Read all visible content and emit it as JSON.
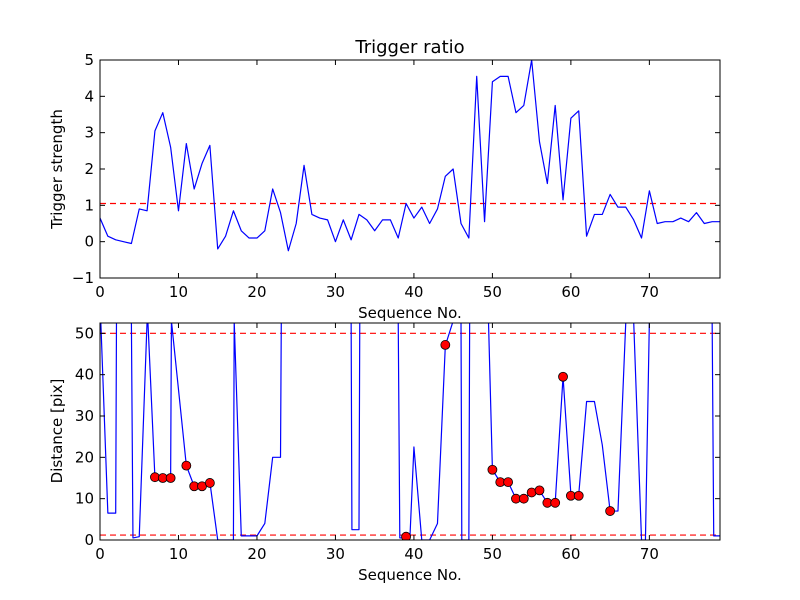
{
  "chart_data": [
    {
      "type": "line",
      "title": "Trigger ratio",
      "xlabel": "Sequence No.",
      "ylabel": "Trigger strength",
      "xlim": [
        0,
        79
      ],
      "ylim": [
        -1,
        5
      ],
      "xticks": [
        0,
        10,
        20,
        30,
        40,
        50,
        60,
        70
      ],
      "yticks": [
        -1,
        0,
        1,
        2,
        3,
        4,
        5
      ],
      "xtick_labels": [
        "0",
        "10",
        "20",
        "30",
        "40",
        "50",
        "60",
        "70"
      ],
      "ytick_labels": [
        "−1",
        "0",
        "1",
        "2",
        "3",
        "4",
        "5"
      ],
      "line_color": "#0000ff",
      "threshold_color": "#ff0000",
      "thresholds": [
        1.05
      ],
      "x": [
        0,
        1,
        2,
        3,
        4,
        5,
        6,
        7,
        8,
        9,
        10,
        11,
        12,
        13,
        14,
        15,
        16,
        17,
        18,
        19,
        20,
        21,
        22,
        23,
        24,
        25,
        26,
        27,
        28,
        29,
        30,
        31,
        32,
        33,
        34,
        35,
        36,
        37,
        38,
        39,
        40,
        41,
        42,
        43,
        44,
        45,
        46,
        47,
        48,
        49,
        50,
        51,
        52,
        53,
        54,
        55,
        56,
        57,
        58,
        59,
        60,
        61,
        62,
        63,
        64,
        65,
        66,
        67,
        68,
        69,
        70,
        71,
        72,
        73,
        74,
        75,
        76,
        77,
        78,
        79
      ],
      "y": [
        0.65,
        0.15,
        0.05,
        0.0,
        -0.05,
        0.9,
        0.85,
        3.05,
        3.55,
        2.6,
        0.85,
        2.7,
        1.45,
        2.15,
        2.65,
        -0.2,
        0.15,
        0.85,
        0.3,
        0.1,
        0.1,
        0.3,
        1.45,
        0.8,
        -0.25,
        0.5,
        2.1,
        0.75,
        0.65,
        0.6,
        0.0,
        0.6,
        0.05,
        0.75,
        0.6,
        0.3,
        0.6,
        0.6,
        0.1,
        1.05,
        0.65,
        0.95,
        0.5,
        0.9,
        1.8,
        2.0,
        0.5,
        0.1,
        4.55,
        0.55,
        4.4,
        4.55,
        4.55,
        3.55,
        3.75,
        5.0,
        2.75,
        1.6,
        3.75,
        1.15,
        3.4,
        3.6,
        0.15,
        0.75,
        0.75,
        1.3,
        0.95,
        0.95,
        0.6,
        0.1,
        1.4,
        0.5,
        0.55,
        0.55,
        0.65,
        0.55,
        0.8,
        0.5,
        0.55,
        0.55
      ]
    },
    {
      "type": "line",
      "title": "",
      "xlabel": "Sequence No.",
      "ylabel": "Distance [pix]",
      "xlim": [
        0,
        79
      ],
      "ylim": [
        0,
        52.5
      ],
      "xticks": [
        0,
        10,
        20,
        30,
        40,
        50,
        60,
        70
      ],
      "yticks": [
        0,
        10,
        20,
        30,
        40,
        50
      ],
      "xtick_labels": [
        "0",
        "10",
        "20",
        "30",
        "40",
        "50",
        "60",
        "70"
      ],
      "ytick_labels": [
        "0",
        "10",
        "20",
        "30",
        "40",
        "50"
      ],
      "line_color": "#0000ff",
      "marker_color": "#ff0000",
      "threshold_color": "#ff0000",
      "thresholds": [
        50,
        1.2
      ],
      "x": [
        0,
        0.1,
        1,
        2,
        2.1,
        4,
        4.2,
        5,
        6,
        6.1,
        7,
        8,
        9,
        9.1,
        11,
        12,
        13,
        14,
        15,
        16,
        17,
        17.1,
        18,
        19,
        20,
        21,
        22,
        23,
        23.1,
        32,
        32.1,
        33,
        33.1,
        38,
        38.2,
        39,
        39.5,
        40,
        41,
        42,
        43,
        44,
        45,
        46,
        46.1,
        47,
        47.1,
        49,
        49.5,
        50,
        51,
        52,
        53,
        54,
        55,
        56,
        57,
        58,
        59,
        60,
        61,
        62,
        63,
        64,
        65,
        66,
        67,
        68,
        69,
        69.5,
        70,
        70.2,
        78,
        78.2,
        79
      ],
      "y": [
        53,
        53,
        6.5,
        6.5,
        53,
        53,
        0.5,
        0.8,
        53,
        53,
        15,
        15,
        15,
        53,
        18,
        13,
        13,
        14,
        0,
        0,
        0,
        53,
        1,
        1,
        1,
        4,
        20,
        20,
        53,
        53,
        2.5,
        2.5,
        53,
        53,
        0.5,
        0.5,
        1,
        22.5,
        0,
        0,
        4,
        47,
        53,
        53,
        0,
        0,
        53,
        53,
        53,
        17,
        14,
        14,
        10,
        10,
        11.5,
        12,
        9,
        9,
        39.5,
        11,
        11,
        33.5,
        33.5,
        23,
        7,
        7,
        53,
        53,
        0,
        0,
        53,
        53,
        53,
        1,
        1
      ],
      "markers": {
        "x": [
          7,
          8,
          9,
          11,
          12,
          13,
          14,
          39,
          44,
          50,
          51,
          52,
          53,
          54,
          55,
          56,
          57,
          58,
          59,
          60,
          61,
          65
        ],
        "y": [
          15.2,
          15,
          15,
          18,
          13,
          13,
          13.8,
          0.8,
          47.2,
          17,
          14,
          14,
          10,
          10,
          11.5,
          12,
          9,
          9,
          39.5,
          10.7,
          10.7,
          7
        ]
      }
    }
  ]
}
